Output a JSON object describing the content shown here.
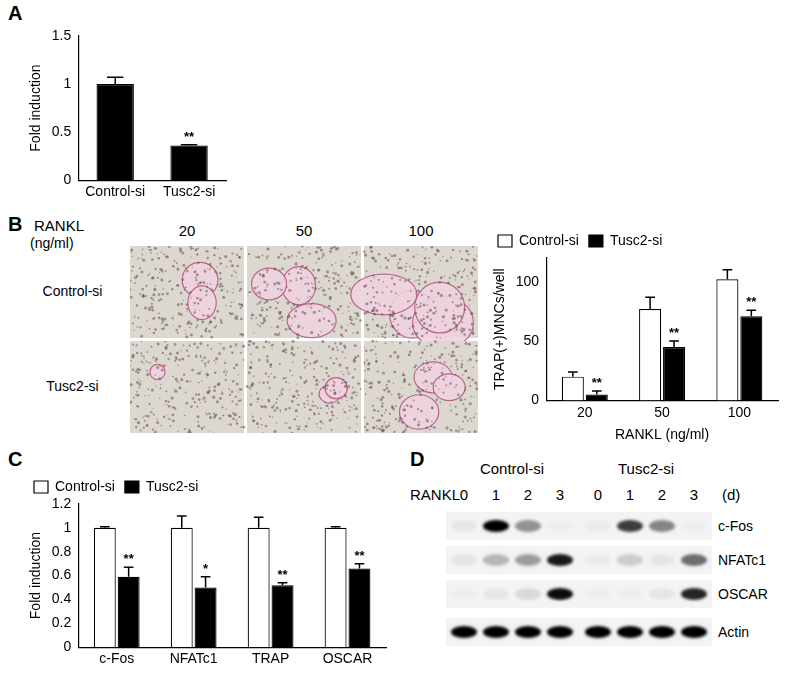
{
  "panel_labels": [
    "A",
    "B",
    "C",
    "D"
  ],
  "chart_data": [
    {
      "type": "bar",
      "categories": [
        "Control-si",
        "Tusc2-si"
      ],
      "values": [
        1.0,
        0.36
      ],
      "errors": [
        0.07,
        0.01
      ],
      "annotations": [
        null,
        "**"
      ],
      "color": "#000000",
      "ylabel": "Fold induction",
      "ylim": [
        0,
        1.5
      ],
      "yticks": [
        0,
        0.5,
        1,
        1.5
      ],
      "grid": false
    },
    {
      "type": "bar",
      "categories": [
        "20",
        "50",
        "100"
      ],
      "series": [
        {
          "name": "Control-si",
          "color": "#ffffff",
          "values": [
            20,
            77,
            102
          ],
          "errors": [
            4,
            10,
            8
          ]
        },
        {
          "name": "Tusc2-si",
          "color": "#000000",
          "values": [
            5,
            45,
            71
          ],
          "errors": [
            3,
            5,
            5
          ],
          "annotations": [
            "**",
            "**",
            "**"
          ]
        }
      ],
      "xlabel": "RANKL (ng/ml)",
      "ylabel": "TRAP(+)MNCs/well",
      "ylim": [
        0,
        120
      ],
      "yticks": [
        0,
        50,
        100
      ],
      "grid": false,
      "legend": "top-left"
    },
    {
      "type": "bar",
      "categories": [
        "c-Fos",
        "NFATc1",
        "TRAP",
        "OSCAR"
      ],
      "series": [
        {
          "name": "Control-si",
          "color": "#ffffff",
          "values": [
            1,
            1,
            1,
            1
          ],
          "errors": [
            0.01,
            0.1,
            0.09,
            0.01
          ]
        },
        {
          "name": "Tusc2-si",
          "color": "#000000",
          "values": [
            0.59,
            0.5,
            0.52,
            0.66
          ],
          "errors": [
            0.08,
            0.09,
            0.02,
            0.04
          ],
          "annotations": [
            "**",
            "*",
            "**",
            "**"
          ]
        }
      ],
      "ylabel": "Fold induction",
      "ylim": [
        0,
        1.2
      ],
      "yticks": [
        0,
        0.2,
        0.4,
        0.6,
        0.8,
        1,
        1.2
      ],
      "grid": false,
      "legend": "top-left"
    }
  ],
  "micrographs": {
    "header": "RANKL",
    "unit": "(ng/ml)",
    "columns": [
      "20",
      "50",
      "100"
    ],
    "rows": [
      "Control-si",
      "Tusc2-si"
    ]
  },
  "blot": {
    "groups": [
      "Control-si",
      "Tusc2-si"
    ],
    "row_header": "RANKL",
    "lanes": [
      "0",
      "1",
      "2",
      "3",
      "0",
      "1",
      "2",
      "3"
    ],
    "unit": "(d)",
    "bands": [
      {
        "name": "c-Fos",
        "intensities": [
          0.05,
          1,
          0.4,
          0.02,
          0.03,
          0.75,
          0.45,
          0.02
        ]
      },
      {
        "name": "NFATc1",
        "intensities": [
          0.05,
          0.25,
          0.35,
          0.9,
          0.03,
          0.15,
          0.05,
          0.55
        ]
      },
      {
        "name": "OSCAR",
        "intensities": [
          0.02,
          0.05,
          0.1,
          0.95,
          0.02,
          0.02,
          0.05,
          0.85
        ]
      },
      {
        "name": "Actin",
        "intensities": [
          1,
          1,
          1,
          1,
          1,
          1,
          1,
          1
        ]
      }
    ]
  }
}
